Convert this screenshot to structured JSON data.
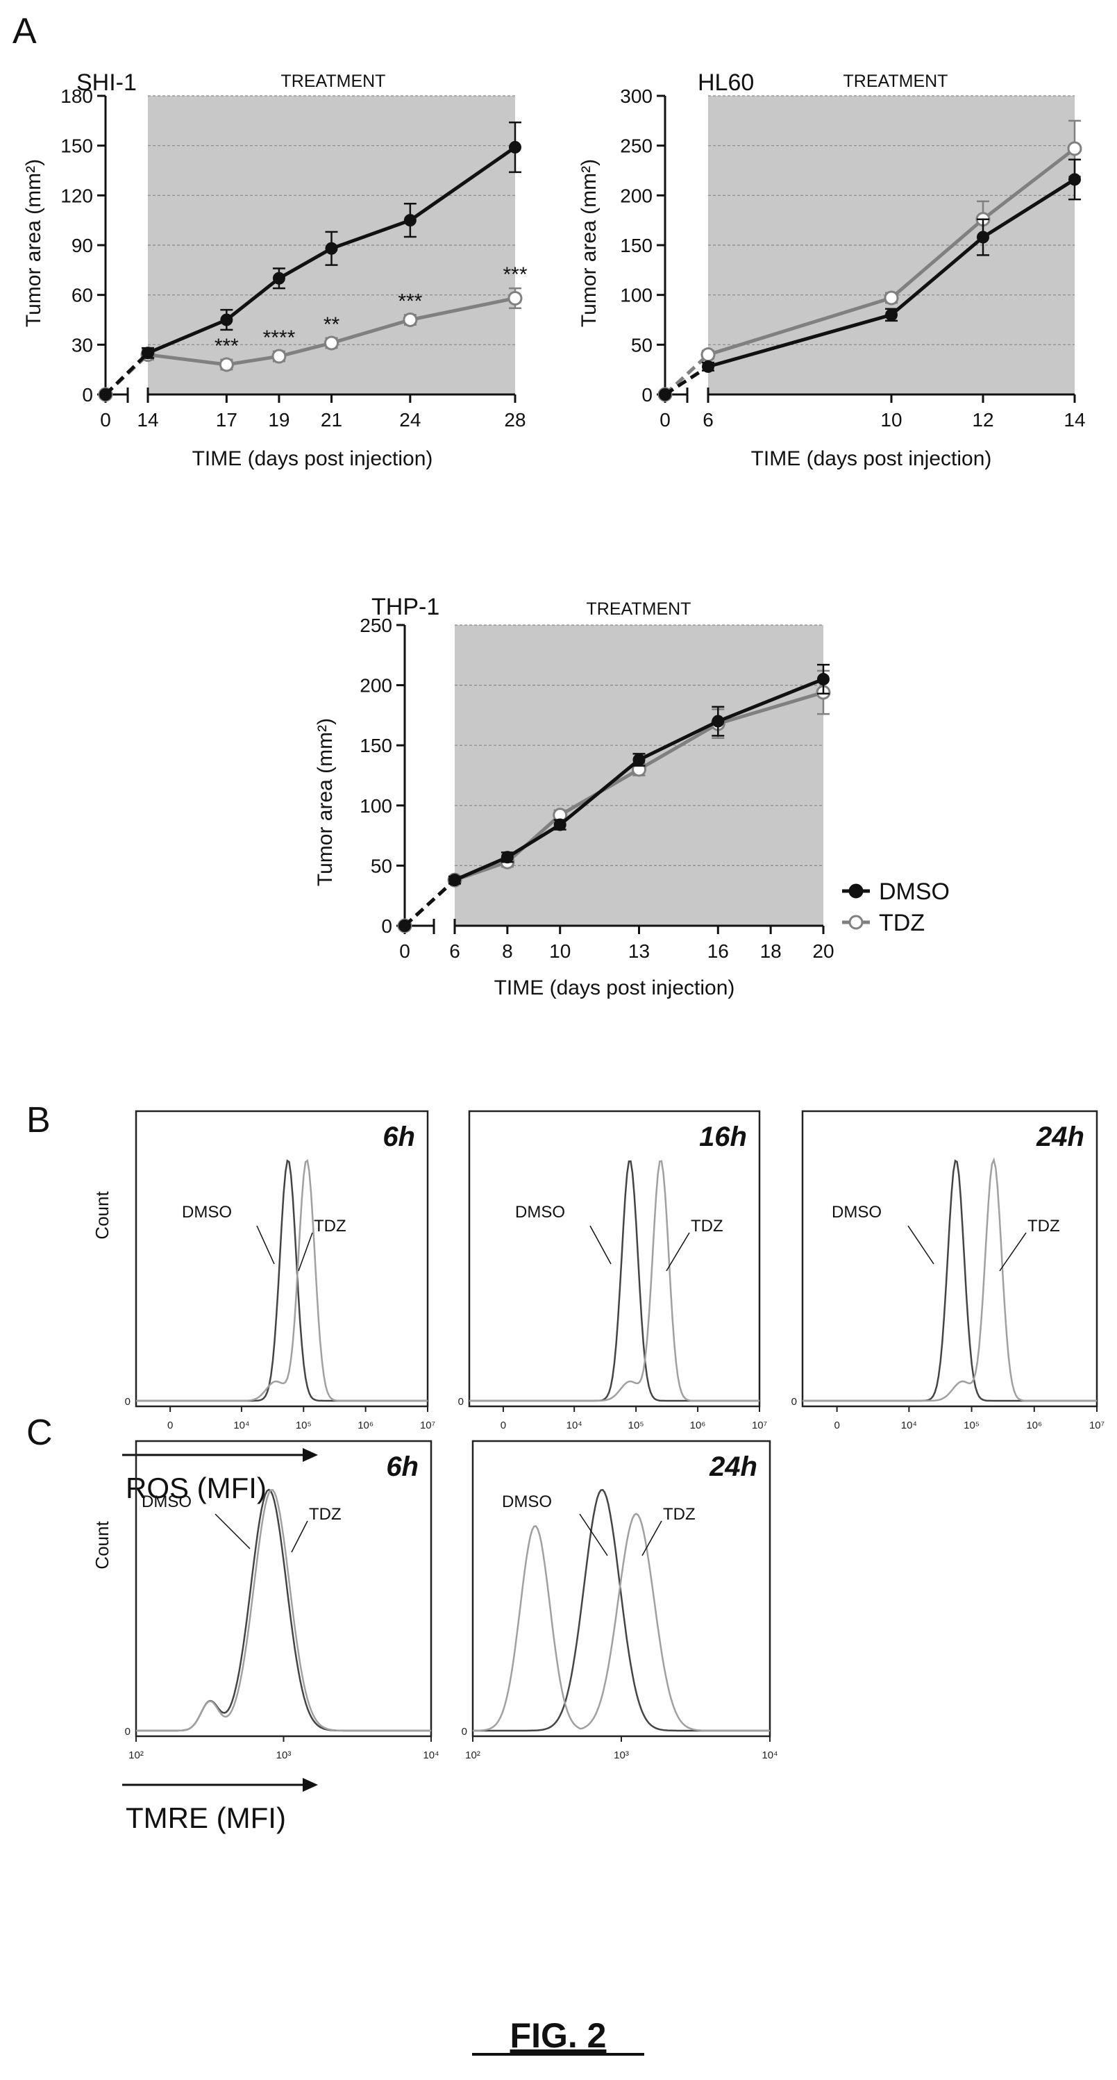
{
  "labels": {
    "A": "A",
    "B": "B",
    "C": "C",
    "figure_caption": "FIG. 2"
  },
  "colors": {
    "dmso": "#111111",
    "tdz": "#808080",
    "shade": "#c8c8c8",
    "dmso_hist": "#444444",
    "tdz_hist": "#a0a0a0"
  },
  "chart_data": [
    {
      "type": "line",
      "panel": "A",
      "cell_line": "SHI-1",
      "treatment_label": "TREATMENT",
      "treatment_start": 14,
      "treatment_end": 28,
      "xlabel": "TIME (days post injection)",
      "ylabel": "Tumor area (mm²)",
      "ylim": [
        0,
        180
      ],
      "yticks": [
        0,
        30,
        60,
        90,
        120,
        150,
        180
      ],
      "xticks": [
        0,
        14,
        17,
        19,
        21,
        24,
        28
      ],
      "series": [
        {
          "name": "DMSO",
          "x": [
            0,
            14,
            17,
            19,
            21,
            24,
            28
          ],
          "y": [
            0,
            25,
            45,
            70,
            88,
            105,
            149
          ],
          "err": [
            0,
            3,
            6,
            6,
            10,
            10,
            15
          ]
        },
        {
          "name": "TDZ",
          "x": [
            0,
            14,
            17,
            19,
            21,
            24,
            28
          ],
          "y": [
            0,
            24,
            18,
            23,
            31,
            45,
            58
          ],
          "err": [
            0,
            3,
            3,
            3,
            3,
            3,
            6
          ]
        }
      ],
      "annotations": [
        {
          "x": 17,
          "text": "***"
        },
        {
          "x": 19,
          "text": "****"
        },
        {
          "x": 21,
          "text": "**"
        },
        {
          "x": 24,
          "text": "***"
        },
        {
          "x": 28,
          "text": "***"
        }
      ],
      "grid": true
    },
    {
      "type": "line",
      "panel": "A",
      "cell_line": "HL60",
      "treatment_label": "TREATMENT",
      "treatment_start": 6,
      "treatment_end": 14,
      "xlabel": "TIME (days post injection)",
      "ylabel": "Tumor area (mm²)",
      "ylim": [
        0,
        300
      ],
      "yticks": [
        0,
        50,
        100,
        150,
        200,
        250,
        300
      ],
      "xticks": [
        0,
        6,
        10,
        12,
        14
      ],
      "series": [
        {
          "name": "DMSO",
          "x": [
            0,
            6,
            10,
            12,
            14
          ],
          "y": [
            0,
            28,
            80,
            158,
            216
          ],
          "err": [
            0,
            4,
            6,
            18,
            20
          ]
        },
        {
          "name": "TDZ",
          "x": [
            0,
            6,
            10,
            12,
            14
          ],
          "y": [
            0,
            40,
            97,
            176,
            247
          ],
          "err": [
            0,
            4,
            5,
            18,
            28
          ]
        }
      ],
      "grid": true
    },
    {
      "type": "line",
      "panel": "A",
      "cell_line": "THP-1",
      "treatment_label": "TREATMENT",
      "treatment_start": 6,
      "treatment_end": 20,
      "xlabel": "TIME (days post injection)",
      "ylabel": "Tumor area (mm²)",
      "ylim": [
        0,
        250
      ],
      "yticks": [
        0,
        50,
        100,
        150,
        200,
        250
      ],
      "xticks": [
        0,
        6,
        8,
        10,
        13,
        16,
        18,
        20
      ],
      "series": [
        {
          "name": "DMSO",
          "x": [
            0,
            6,
            8,
            10,
            13,
            16,
            20
          ],
          "y": [
            0,
            38,
            57,
            84,
            138,
            170,
            205
          ],
          "err": [
            0,
            3,
            4,
            4,
            5,
            12,
            12
          ]
        },
        {
          "name": "TDZ",
          "x": [
            0,
            6,
            8,
            10,
            13,
            16,
            20
          ],
          "y": [
            0,
            38,
            53,
            92,
            130,
            168,
            194
          ],
          "err": [
            0,
            3,
            4,
            4,
            5,
            12,
            18
          ]
        }
      ],
      "legend": {
        "entries": [
          "DMSO",
          "TDZ"
        ],
        "placement": "right"
      },
      "grid": true
    },
    {
      "type": "histogram",
      "panel": "B",
      "time": "6h",
      "ylabel": "Count",
      "xlabel": "ROS (MFI)",
      "x_scale": "log",
      "xlim": [
        1,
        10000000
      ],
      "xticks": [
        "0",
        "10⁴",
        "10⁵",
        "10⁶",
        "10⁷"
      ],
      "ytick": "0",
      "series": [
        {
          "name": "DMSO",
          "peak_log": 4.75
        },
        {
          "name": "TDZ",
          "peak_log": 5.05
        }
      ]
    },
    {
      "type": "histogram",
      "panel": "B",
      "time": "16h",
      "xlabel": "ROS (MFI)",
      "x_scale": "log",
      "xlim": [
        1,
        10000000
      ],
      "xticks": [
        "0",
        "10⁴",
        "10⁵",
        "10⁶",
        "10⁷"
      ],
      "ytick": "0",
      "series": [
        {
          "name": "DMSO",
          "peak_log": 4.9
        },
        {
          "name": "TDZ",
          "peak_log": 5.4
        }
      ]
    },
    {
      "type": "histogram",
      "panel": "B",
      "time": "24h",
      "xlabel": "ROS (MFI)",
      "x_scale": "log",
      "xlim": [
        1,
        10000000
      ],
      "xticks": [
        "0",
        "10⁴",
        "10⁵",
        "10⁶",
        "10⁷"
      ],
      "ytick": "0",
      "series": [
        {
          "name": "DMSO",
          "peak_log": 4.75
        },
        {
          "name": "TDZ",
          "peak_log": 5.35
        }
      ]
    },
    {
      "type": "histogram",
      "panel": "C",
      "time": "6h",
      "ylabel": "Count",
      "xlabel": "TMRE (MFI)",
      "x_scale": "log",
      "xlim": [
        100,
        10000
      ],
      "xticks": [
        "10²",
        "10³",
        "10⁴"
      ],
      "ytick": "0",
      "series": [
        {
          "name": "DMSO",
          "peak_log": 2.9
        },
        {
          "name": "TDZ",
          "peak_log": 2.92
        }
      ]
    },
    {
      "type": "histogram",
      "panel": "C",
      "time": "24h",
      "xlabel": "TMRE (MFI)",
      "x_scale": "log",
      "xlim": [
        100,
        10000
      ],
      "xticks": [
        "10²",
        "10³",
        "10⁴"
      ],
      "ytick": "0",
      "series": [
        {
          "name": "DMSO",
          "peak_log": 2.87
        },
        {
          "name": "TDZ",
          "peak_log": 3.1,
          "secondary_peak_log": 2.42
        }
      ]
    }
  ]
}
